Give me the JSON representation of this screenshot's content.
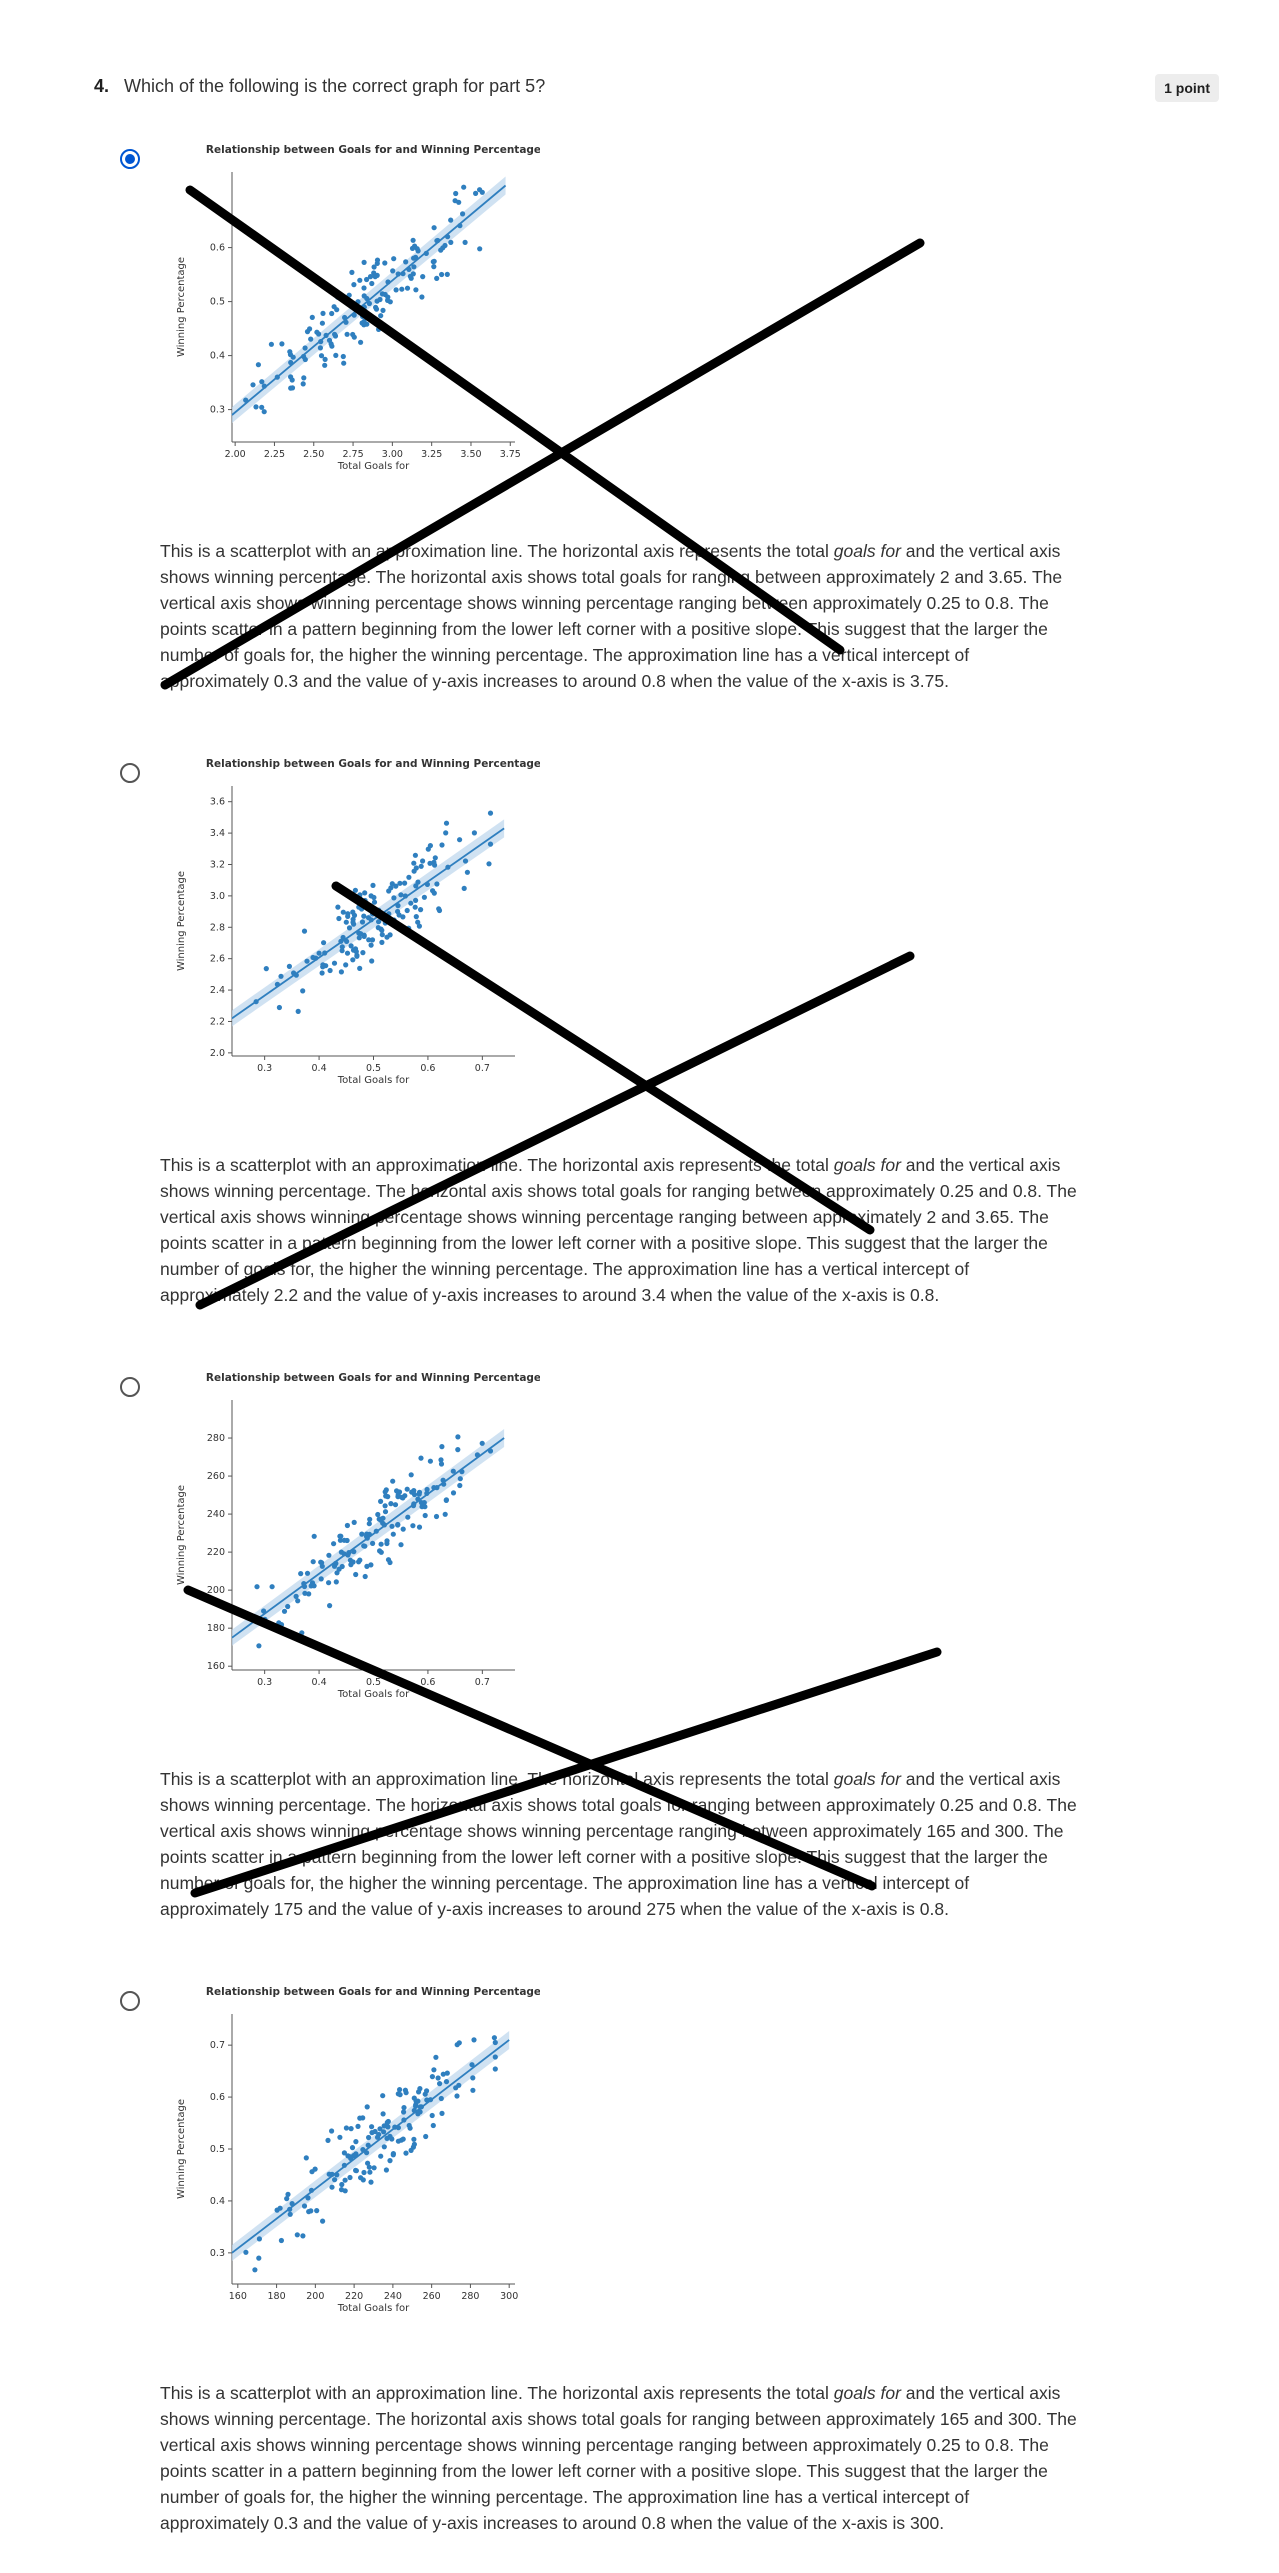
{
  "question": {
    "number": "4.",
    "text": "Which of the following is the correct graph for part 5?",
    "points": "1 point"
  },
  "options": [
    {
      "id": "a",
      "selected": true,
      "chart": {
        "type": "scatter",
        "title": "Relationship between Goals for and Winning Percentage",
        "xlabel": "Total Goals for",
        "ylabel": "Winning Percentage",
        "xticks": [
          "2.00",
          "2.25",
          "2.50",
          "2.75",
          "3.00",
          "3.25",
          "3.50",
          "3.75"
        ],
        "yticks": [
          "0.3",
          "0.4",
          "0.5",
          "0.6"
        ],
        "xlim": [
          1.98,
          3.78
        ],
        "ylim": [
          0.24,
          0.74
        ],
        "fit": {
          "x0": 1.98,
          "y0": 0.29,
          "x1": 3.72,
          "y1": 0.715
        }
      },
      "description": {
        "p1": "This is a scatterplot with an approximation line. The horizontal axis represents the total ",
        "em": "goals for",
        "p2": " and the vertical axis shows winning percentage. The horizontal axis shows total goals for ranging between approximately 2 and 3.65. The vertical axis shows winning percentage shows winning percentage ranging between approximately 0.25 to 0.8. The points scatter in a pattern beginning from the lower left corner with a positive slope. This suggest that the larger the number of goals for, the higher the winning percentage. The approximation line has a vertical intercept of approximately 0.3 and the value of y-axis increases to around 0.8 when the value of the x-axis is 3.75."
      }
    },
    {
      "id": "b",
      "selected": false,
      "chart": {
        "type": "scatter",
        "title": "Relationship between Goals for and Winning Percentage",
        "xlabel": "Total Goals for",
        "ylabel": "Winning Percentage",
        "xticks": [
          "0.3",
          "0.4",
          "0.5",
          "0.6",
          "0.7"
        ],
        "yticks": [
          "2.0",
          "2.2",
          "2.4",
          "2.6",
          "2.8",
          "3.0",
          "3.2",
          "3.4",
          "3.6"
        ],
        "xlim": [
          0.24,
          0.76
        ],
        "ylim": [
          1.98,
          3.7
        ],
        "fit": {
          "x0": 0.24,
          "y0": 2.22,
          "x1": 0.74,
          "y1": 3.43
        }
      },
      "description": {
        "p1": "This is a scatterplot with an approximation line. The horizontal axis represents the total ",
        "em": "goals for",
        "p2": " and the vertical axis shows winning percentage. The horizontal axis shows total goals for ranging between approximately 0.25 and 0.8. The vertical axis shows winning percentage shows winning percentage ranging between approximately 2 and 3.65. The points scatter in a pattern beginning from the lower left corner with a positive slope. This suggest that the larger the number of goals for, the higher the winning percentage. The approximation line has a vertical intercept of approximately 2.2 and the value of y-axis increases to around 3.4 when the value of the x-axis is 0.8."
      }
    },
    {
      "id": "c",
      "selected": false,
      "chart": {
        "type": "scatter",
        "title": "Relationship between Goals for and Winning Percentage",
        "xlabel": "Total Goals for",
        "ylabel": "Winning Percentage",
        "xticks": [
          "0.3",
          "0.4",
          "0.5",
          "0.6",
          "0.7"
        ],
        "yticks": [
          "160",
          "180",
          "200",
          "220",
          "240",
          "260",
          "280"
        ],
        "xlim": [
          0.24,
          0.76
        ],
        "ylim": [
          158,
          300
        ],
        "fit": {
          "x0": 0.24,
          "y0": 175,
          "x1": 0.74,
          "y1": 280
        }
      },
      "description": {
        "p1": "This is a scatterplot with an approximation line. The horizontal axis represents the total ",
        "em": "goals for",
        "p2": " and the vertical axis shows winning percentage. The horizontal axis shows total goals for ranging between approximately 0.25 and 0.8. The vertical axis shows winning percentage shows winning percentage ranging between approximately 165 and 300. The points scatter in a pattern beginning from the lower left corner with a positive slope. This suggest that the larger the number of goals for, the higher the winning percentage. The approximation line has a vertical intercept of approximately 175 and the value of y-axis increases to around 275 when the value of the x-axis is 0.8."
      }
    },
    {
      "id": "d",
      "selected": false,
      "chart": {
        "type": "scatter",
        "title": "Relationship between Goals for and Winning Percentage",
        "xlabel": "Total Goals for",
        "ylabel": "Winning Percentage",
        "xticks": [
          "160",
          "180",
          "200",
          "220",
          "240",
          "260",
          "280",
          "300"
        ],
        "yticks": [
          "0.3",
          "0.4",
          "0.5",
          "0.6",
          "0.7"
        ],
        "xlim": [
          157,
          303
        ],
        "ylim": [
          0.24,
          0.76
        ],
        "fit": {
          "x0": 157,
          "y0": 0.3,
          "x1": 300,
          "y1": 0.71
        }
      },
      "description": {
        "p1": "This is a scatterplot with an approximation line. The horizontal axis represents the total ",
        "em": "goals for",
        "p2": " and the vertical axis shows winning percentage. The horizontal axis shows total goals for ranging between approximately 165 and 300. The vertical axis shows winning percentage shows winning percentage ranging between approximately 0.25 to 0.8. The points scatter in a pattern beginning from the lower left corner with a positive slope. This suggest that the larger the number of goals for, the higher the winning percentage. The approximation line has a vertical intercept of approximately 0.3 and the value of y-axis increases to around 0.8 when the value of the x-axis is 300."
      }
    }
  ],
  "colors": {
    "point": "#2f7fbf",
    "fit_line": "#2f7fbf",
    "band": "#bcd6ec",
    "radio_selected": "#0056d2",
    "cross": "#000000"
  }
}
